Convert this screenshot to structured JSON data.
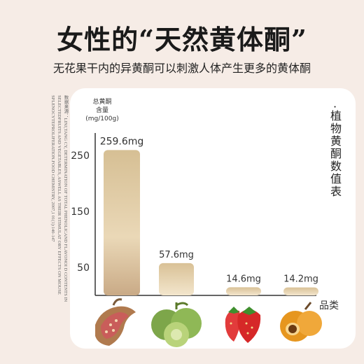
{
  "header": {
    "title": "女性的“天然黄体酮”",
    "subtitle": "无花果干内的异黄酮可以刺激人体产生更多的黄体酮"
  },
  "source_note": "数据来源：LINJ,TANG CY, DETERMINATION OF TOTAL PHENOLICAND FLAVONOI D CONTENTS IN SELECTEDFRUITS AND VEGETABLES, ASWELL AS THEIR STIMULAT ORY EFFECTS ON MOUSE SPLENOCYTEPROLIFERATION.FOOD CHEMISTRY, 2007,1 01(1):140-147",
  "side_label": "·植物黄酮数值表",
  "chart_data": {
    "type": "bar",
    "title": "女性的“天然黄体酮”",
    "ylabel_lines": [
      "总黄酮",
      "含量",
      "(mg/100g)"
    ],
    "xlabel": "品类",
    "categories": [
      "无花果干",
      "毛桃",
      "草莓",
      "枇杷"
    ],
    "values": [
      259.6,
      57.6,
      14.6,
      14.2
    ],
    "value_labels": [
      "259.6mg",
      "57.6mg",
      "14.6mg",
      "14.2mg"
    ],
    "yticks": [
      50,
      150,
      250
    ],
    "ylim": [
      0,
      290
    ],
    "grid": false,
    "bar_color": "#d6bf93",
    "bar_color_light": "#f1e3c9"
  }
}
